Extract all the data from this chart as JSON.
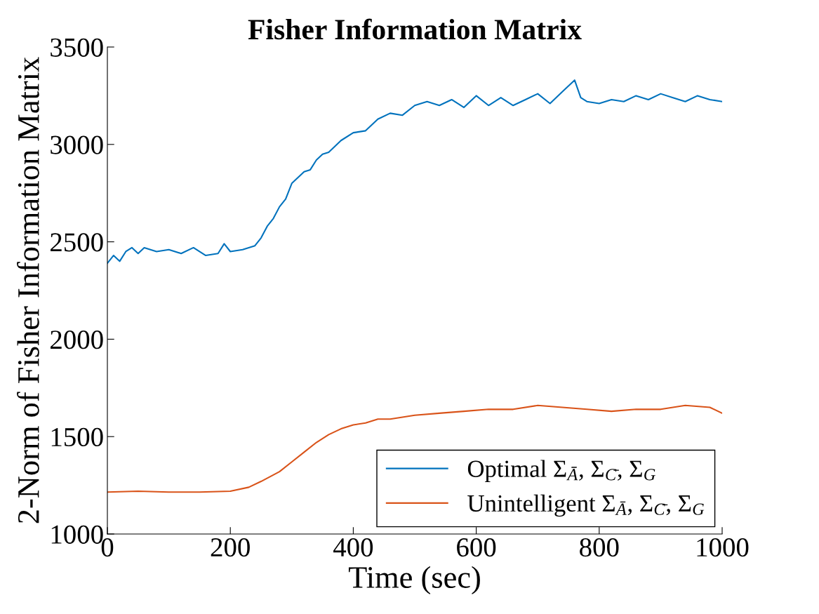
{
  "chart_data": {
    "type": "line",
    "title": "Fisher Information Matrix",
    "xlabel": "Time (sec)",
    "ylabel": "2-Norm of Fisher Information Matrix",
    "xlim": [
      0,
      1000
    ],
    "xticks": [
      0,
      200,
      400,
      600,
      800,
      1000
    ],
    "ylim": [
      1000,
      3500
    ],
    "yticks": [
      1000,
      1500,
      2000,
      2500,
      3000,
      3500
    ],
    "grid": false,
    "legend": "bottom right",
    "marker": "none",
    "line_style": "solid",
    "series": [
      {
        "name": "Optimal Σ$_{Ā}$, Σ$_{C̄}$, Σ$_{G}$",
        "color": "#0072bd",
        "x": [
          0,
          10,
          20,
          30,
          40,
          50,
          60,
          80,
          100,
          120,
          140,
          160,
          180,
          190,
          200,
          220,
          240,
          250,
          260,
          270,
          280,
          290,
          300,
          310,
          320,
          330,
          340,
          350,
          360,
          380,
          400,
          420,
          440,
          460,
          480,
          500,
          520,
          540,
          560,
          580,
          600,
          620,
          640,
          660,
          680,
          700,
          720,
          740,
          760,
          770,
          780,
          800,
          820,
          840,
          860,
          880,
          900,
          920,
          940,
          960,
          980,
          1000
        ],
        "values": [
          2390,
          2430,
          2400,
          2450,
          2470,
          2440,
          2470,
          2450,
          2460,
          2440,
          2470,
          2430,
          2440,
          2490,
          2450,
          2460,
          2480,
          2520,
          2580,
          2620,
          2680,
          2720,
          2800,
          2830,
          2860,
          2870,
          2920,
          2950,
          2960,
          3020,
          3060,
          3070,
          3130,
          3160,
          3150,
          3200,
          3220,
          3200,
          3230,
          3190,
          3250,
          3200,
          3240,
          3200,
          3230,
          3260,
          3210,
          3270,
          3330,
          3240,
          3220,
          3210,
          3230,
          3220,
          3250,
          3230,
          3260,
          3240,
          3220,
          3250,
          3230,
          3220
        ]
      },
      {
        "name": "Unintelligent Σ$_{Ā}$, Σ$_{C̄}$, Σ$_{G}$",
        "color": "#d95319",
        "x": [
          0,
          50,
          100,
          150,
          200,
          230,
          250,
          280,
          300,
          320,
          340,
          360,
          380,
          400,
          420,
          440,
          460,
          500,
          540,
          580,
          620,
          660,
          700,
          740,
          780,
          820,
          860,
          900,
          940,
          980,
          1000
        ],
        "values": [
          1215,
          1220,
          1215,
          1215,
          1220,
          1240,
          1270,
          1320,
          1370,
          1420,
          1470,
          1510,
          1540,
          1560,
          1570,
          1590,
          1590,
          1610,
          1620,
          1630,
          1640,
          1640,
          1660,
          1650,
          1640,
          1630,
          1640,
          1640,
          1660,
          1650,
          1620
        ]
      }
    ]
  }
}
